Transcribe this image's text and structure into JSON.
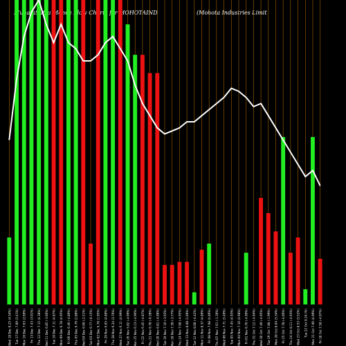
{
  "title_left": "MunafaSutra  Money Flow  Charts for MOHOTAIND",
  "title_right": "(Mohota  Industries Limit",
  "chart_data": {
    "type": "bar",
    "title": "MunafaSutra  Money Flow  Charts for MOHOTAIND (Mohota  Industries Limit",
    "xlabel": "",
    "ylabel": "",
    "grid": true,
    "colors": {
      "up": "#22ee22",
      "down": "#ee1111",
      "line": "#ffffff",
      "grid": "#aa6600",
      "background": "#000000"
    },
    "categories": [
      "Wed 18 Dec 8.25 (4.54%)",
      "Tue 17 Dec 7.89 (3.41%)",
      "Mon 16 Dec 7.63 (2.69%)",
      "Fri 13 Dec 7.43 (3.91%)",
      "Thu 12 Dec 7.15 (4.38%)",
      "Wed 11 Dec 6.85 (-3.66%)",
      "Tue 10 Dec 7.11 (4.87%)",
      "Mon 09 Dec 6.78 (4.95%)",
      "Fri 06 Dec 6.46 (-4.86%)",
      "Thu 05 Dec 6.79 (2.88%)",
      "Wed 04 Dec 6.60 (-2.51%)",
      "Tue 03 Dec 6.77 (-0.15%)",
      "Mon 02 Dec 6.78 (1.95%)",
      "Fri 29 Nov 6.65 (4.89%)",
      "Thu 28 Nov 6.34 (3.76%)",
      "Wed 27 Nov 6.11 (4.99%)",
      "Tue 26 Nov 5.82 (-4.99%)",
      "Mon 25 Nov 6.13 (-4.96%)",
      "Fri 22 Nov 6.45 (-4.87%)",
      "Thu 21 Nov 6.78 (-0.38%)",
      "Wed 20 Nov 6.81 (-4.08%)",
      "Tue 19 Nov 7.10 (-3.93%)",
      "Mon 18 Nov 7.39 (-3.77%)",
      "Thu 14 Nov 7.68 (-4.95%)",
      "Wed 13 Nov 8.08 (1.00%)",
      "Tue 12 Nov 8.00 (-4.42%)",
      "Mon 11 Nov 8.37 (4.89%)",
      "Fri 08 Nov 7.98 (4.86%)",
      "Thu 07 Nov 7.61 (-1.30%)",
      "Wed 06 Nov 7.71 (3.49%)",
      "Tue 05 Nov 7.45 (4.93%)",
      "Mon 04 Nov 7.10 (4.98%)",
      "Fri 01 Nov 6.76 (-4.99%)",
      "Thu 31 Oct 7.12 (-4.94%)",
      "Wed 30 Oct 7.49 (-4.95%)",
      "Tue 29 Oct 7.88 (-1.99%)",
      "Mon 28 Oct 8.04 (3.34%)",
      "Fri 25 Oct 7.78 (-4.06%)",
      "Thu 24 Oct 8.11 (-4.93%)",
      "Wed 23 Oct 8.53 (3.52%)",
      "Tue 22 Oct 8.24 (%)",
      "Mon 21 Oct 7.96 (4.99%)",
      "Fri 18 Oct 7.58 (-4.97%)"
    ],
    "bar_direction": [
      "up",
      "up",
      "up",
      "up",
      "up",
      "up",
      "down",
      "down",
      "up",
      "up",
      "down",
      "down",
      "down",
      "up",
      "up",
      "down",
      "up",
      "up",
      "down",
      "down",
      "down",
      "down",
      "down",
      "down",
      "down",
      "up",
      "down",
      "up",
      "up",
      "down",
      "up",
      "up",
      "up",
      "up",
      "down",
      "down",
      "down",
      "up",
      "down",
      "down",
      "up",
      "up",
      "down"
    ],
    "values": [
      22,
      100,
      100,
      100,
      100,
      100,
      100,
      100,
      100,
      100,
      100,
      20,
      100,
      100,
      100,
      100,
      92,
      82,
      82,
      76,
      76,
      13,
      13,
      14,
      14,
      4,
      18,
      20,
      0,
      0,
      0,
      0,
      17,
      0,
      35,
      30,
      24,
      55,
      17,
      22,
      5,
      55,
      15
    ],
    "line_values": [
      54,
      74,
      88,
      96,
      100,
      92,
      86,
      92,
      86,
      84,
      80,
      80,
      82,
      86,
      88,
      84,
      80,
      72,
      66,
      62,
      58,
      56,
      57,
      58,
      60,
      60,
      62,
      64,
      66,
      68,
      71,
      70,
      68,
      65,
      66,
      62,
      58,
      54,
      50,
      46,
      42,
      44,
      39
    ]
  }
}
